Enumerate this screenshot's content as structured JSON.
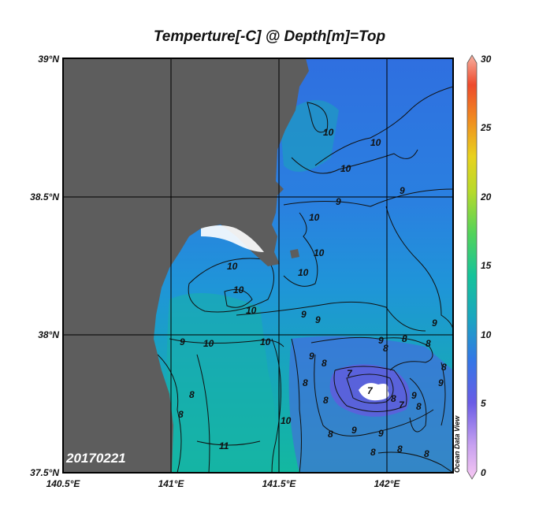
{
  "title": "Temperture[-C] @ Depth[m]=Top",
  "date_stamp": "20170221",
  "credit": "Ocean Data View",
  "axes": {
    "lat_labels": [
      "39°N",
      "38.5°N",
      "38°N",
      "37.5°N"
    ],
    "lon_labels": [
      "140.5°E",
      "141°E",
      "141.5°E",
      "142°E"
    ]
  },
  "colorbar": {
    "min": 0,
    "max": 30,
    "tick_labels": [
      "30",
      "25",
      "20",
      "15",
      "10",
      "5",
      "0"
    ]
  },
  "contour_labels": [
    "10",
    "10",
    "10",
    "9",
    "10",
    "10",
    "10",
    "9",
    "10",
    "10",
    "10",
    "9",
    "9",
    "8",
    "8",
    "8",
    "8",
    "8",
    "9",
    "9",
    "9",
    "9",
    "8",
    "8",
    "8",
    "7",
    "7",
    "7",
    "8",
    "8",
    "8",
    "8",
    "8",
    "11",
    "10",
    "9",
    "8",
    "8",
    "10",
    "10",
    "9",
    "9",
    "9"
  ],
  "colors": {
    "land": "#5d5d5d",
    "sea_main": "#2b78e0",
    "sea_warm": "#15b3a8",
    "sea_cold": "#5a5ae0",
    "gap": "#ffffff"
  }
}
